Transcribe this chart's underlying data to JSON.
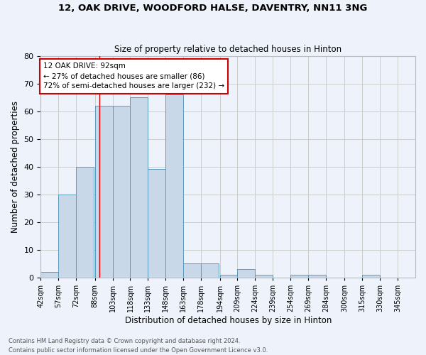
{
  "title1": "12, OAK DRIVE, WOODFORD HALSE, DAVENTRY, NN11 3NG",
  "title2": "Size of property relative to detached houses in Hinton",
  "xlabel": "Distribution of detached houses by size in Hinton",
  "ylabel": "Number of detached properties",
  "footer1": "Contains HM Land Registry data © Crown copyright and database right 2024.",
  "footer2": "Contains public sector information licensed under the Open Government Licence v3.0.",
  "annotation_line1": "12 OAK DRIVE: 92sqm",
  "annotation_line2": "← 27% of detached houses are smaller (86)",
  "annotation_line3": "72% of semi-detached houses are larger (232) →",
  "bar_left_edges": [
    42,
    57,
    72,
    88,
    103,
    118,
    133,
    148,
    163,
    178,
    194,
    209,
    224,
    239,
    254,
    269,
    284,
    300,
    315,
    330
  ],
  "bar_heights": [
    2,
    30,
    40,
    62,
    62,
    65,
    39,
    66,
    5,
    5,
    1,
    3,
    1,
    0,
    1,
    1,
    0,
    0,
    1,
    0
  ],
  "bin_width": 15,
  "bar_color": "#c8d8e8",
  "bar_edge_color": "#5b9abf",
  "vline_color": "#cc0000",
  "vline_x": 92,
  "annotation_box_color": "#cc0000",
  "grid_color": "#cccccc",
  "background_color": "#edf2fb",
  "ylim": [
    0,
    80
  ],
  "yticks": [
    0,
    10,
    20,
    30,
    40,
    50,
    60,
    70,
    80
  ],
  "x_tick_labels": [
    "42sqm",
    "57sqm",
    "72sqm",
    "88sqm",
    "103sqm",
    "118sqm",
    "133sqm",
    "148sqm",
    "163sqm",
    "178sqm",
    "194sqm",
    "209sqm",
    "224sqm",
    "239sqm",
    "254sqm",
    "269sqm",
    "284sqm",
    "300sqm",
    "315sqm",
    "330sqm",
    "345sqm"
  ],
  "figwidth": 6.0,
  "figheight": 5.0,
  "dpi": 100
}
